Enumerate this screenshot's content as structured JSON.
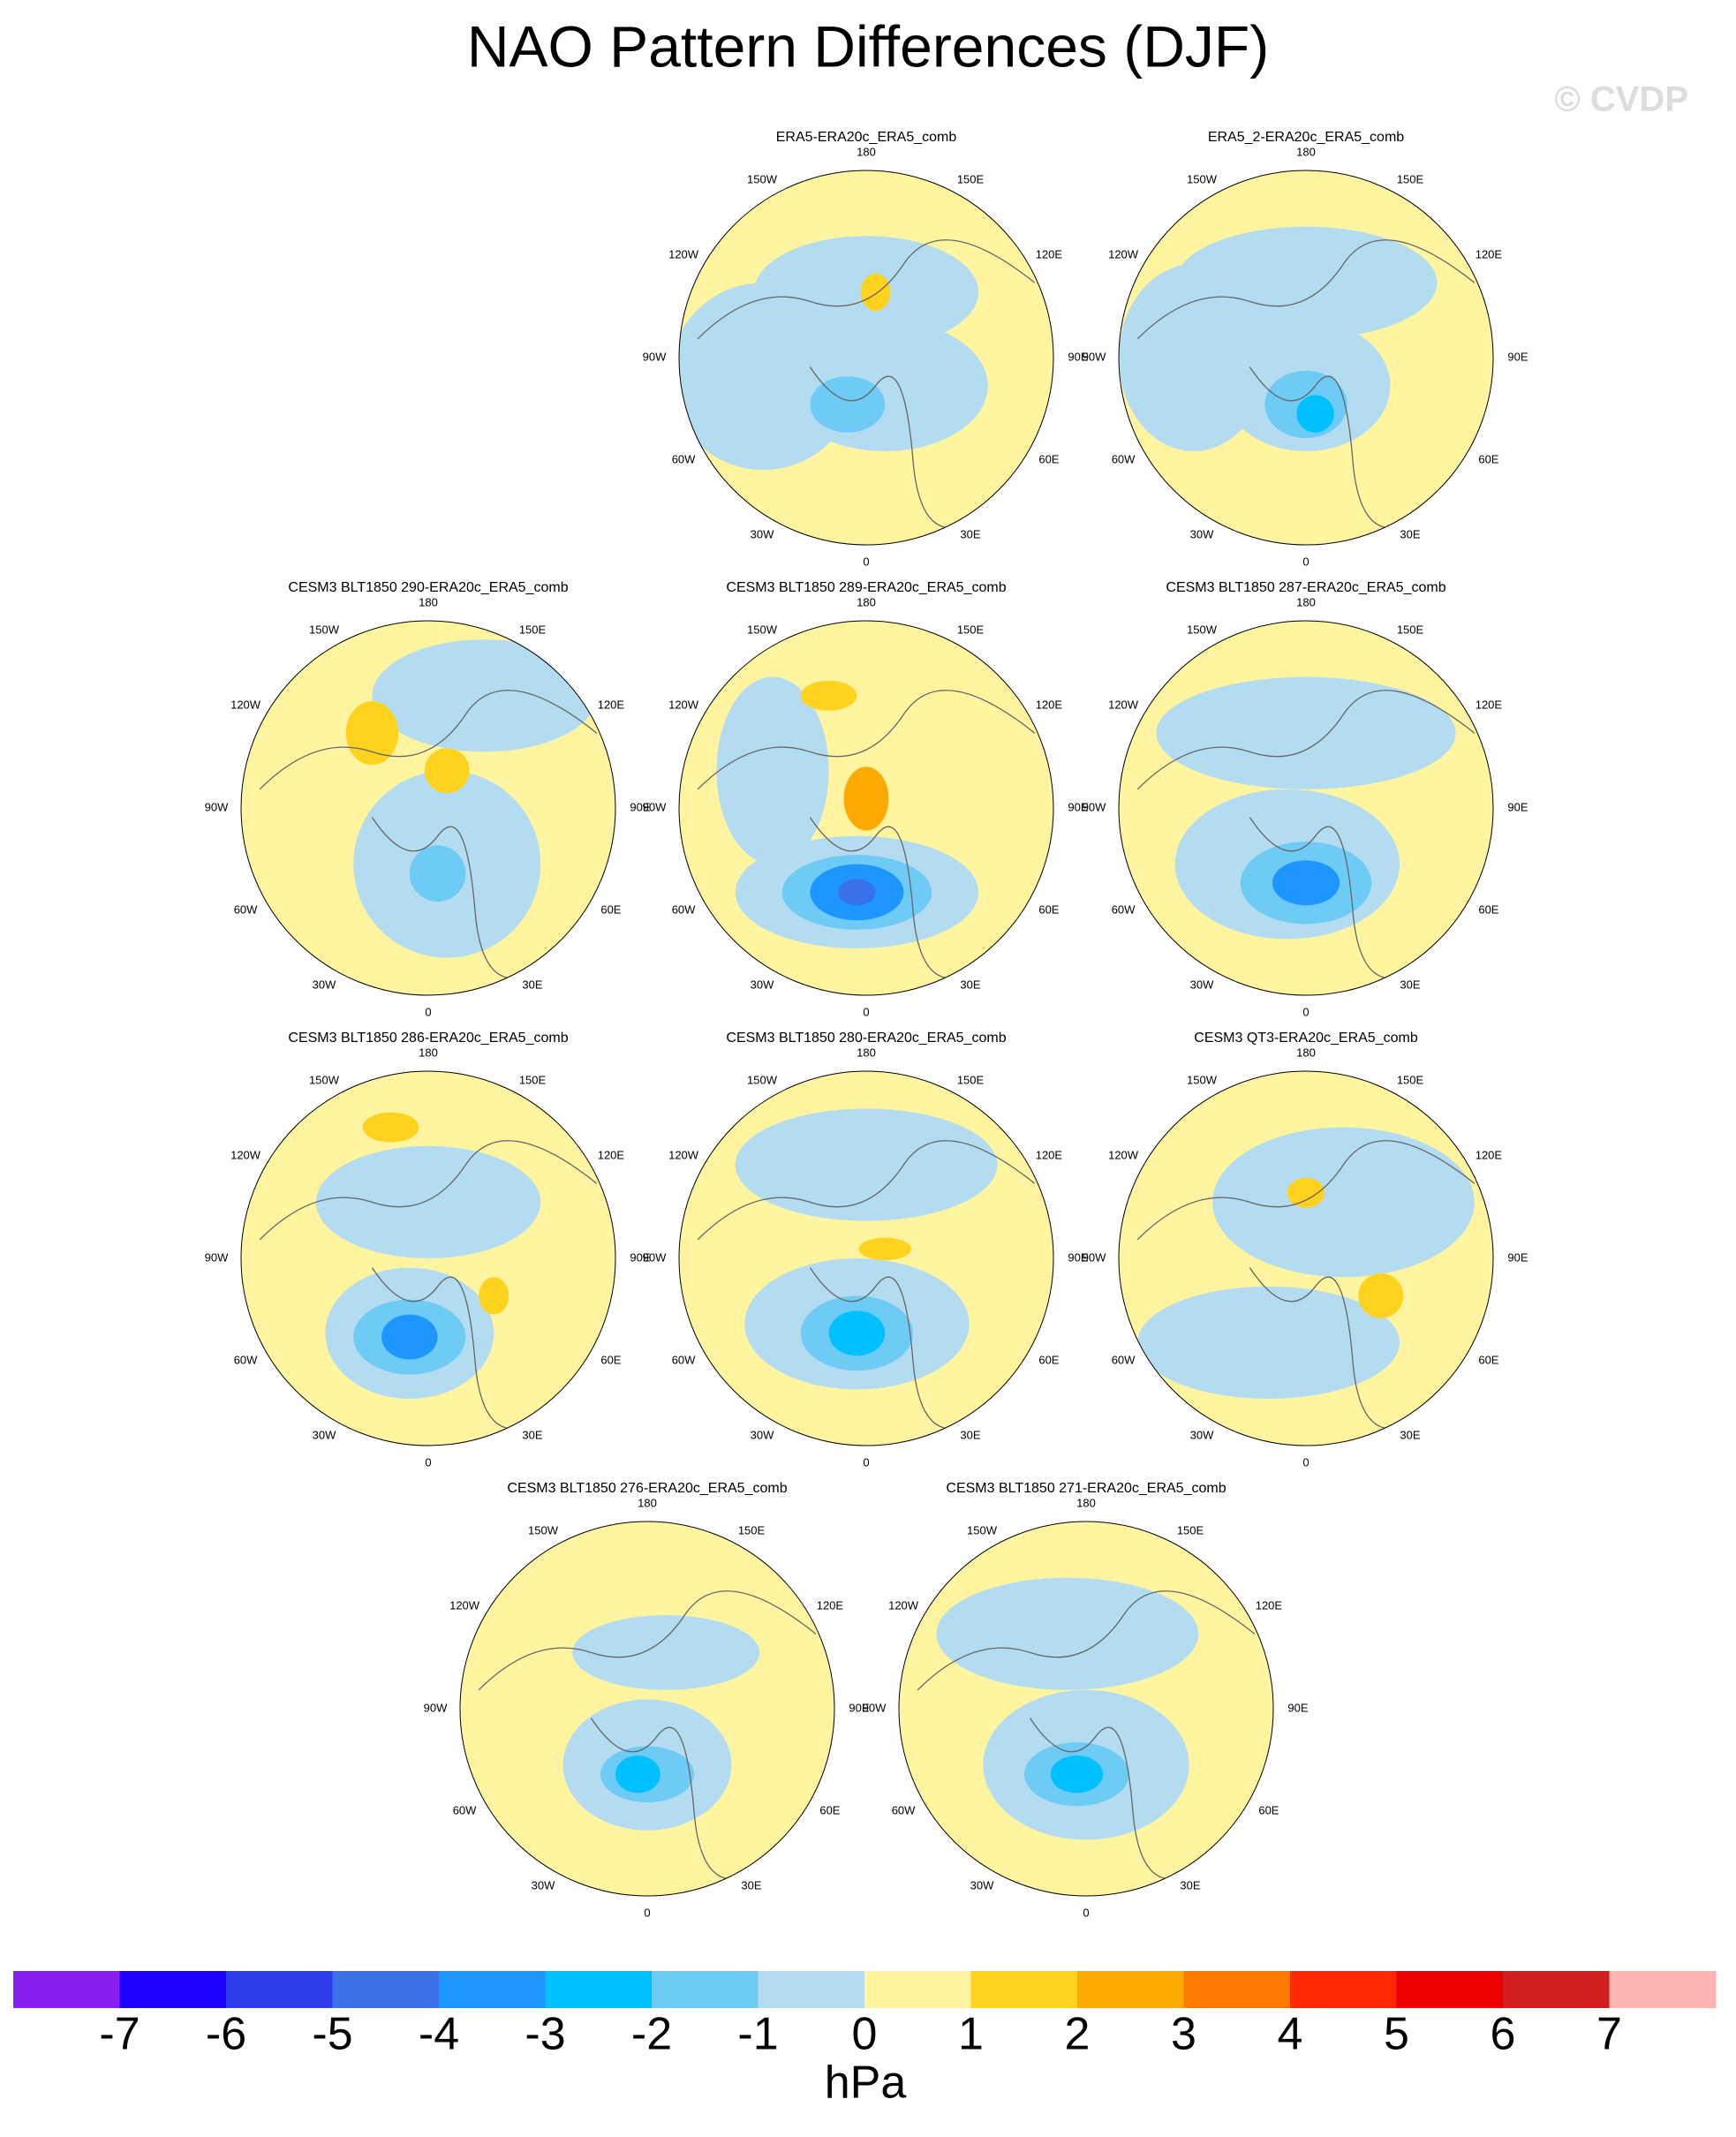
{
  "title": "NAO Pattern Differences (DJF)",
  "watermark": "© CVDP",
  "panels": [
    {
      "title": "ERA5-ERA20c_ERA5_comb"
    },
    {
      "title": "ERA5_2-ERA20c_ERA5_comb"
    },
    {
      "title": "CESM3 BLT1850 290-ERA20c_ERA5_comb"
    },
    {
      "title": "CESM3 BLT1850 289-ERA20c_ERA5_comb"
    },
    {
      "title": "CESM3 BLT1850 287-ERA20c_ERA5_comb"
    },
    {
      "title": "CESM3 BLT1850 286-ERA20c_ERA5_comb"
    },
    {
      "title": "CESM3 BLT1850 280-ERA20c_ERA5_comb"
    },
    {
      "title": "CESM3 QT3-ERA20c_ERA5_comb"
    },
    {
      "title": "CESM3 BLT1850 276-ERA20c_ERA5_comb"
    },
    {
      "title": "CESM3 BLT1850 271-ERA20c_ERA5_comb"
    }
  ],
  "lon_labels": [
    "180",
    "150E",
    "120E",
    "90E",
    "60E",
    "30E",
    "0",
    "30W",
    "60W",
    "90W",
    "120W",
    "150W"
  ],
  "colorbar": {
    "colors": [
      "#8b1ef2",
      "#1e00ff",
      "#2a3fea",
      "#3a70e8",
      "#1e96ff",
      "#00c0ff",
      "#6ecbf5",
      "#b4dcf0",
      "#fff5a0",
      "#ffd21e",
      "#ffaa00",
      "#ff7800",
      "#ff2800",
      "#ee0000",
      "#d21e1e",
      "#ffb4b4"
    ],
    "ticks": [
      -7,
      -6,
      -5,
      -4,
      -3,
      -2,
      -1,
      0,
      1,
      2,
      3,
      4,
      5,
      6,
      7
    ],
    "label": "hPa"
  }
}
